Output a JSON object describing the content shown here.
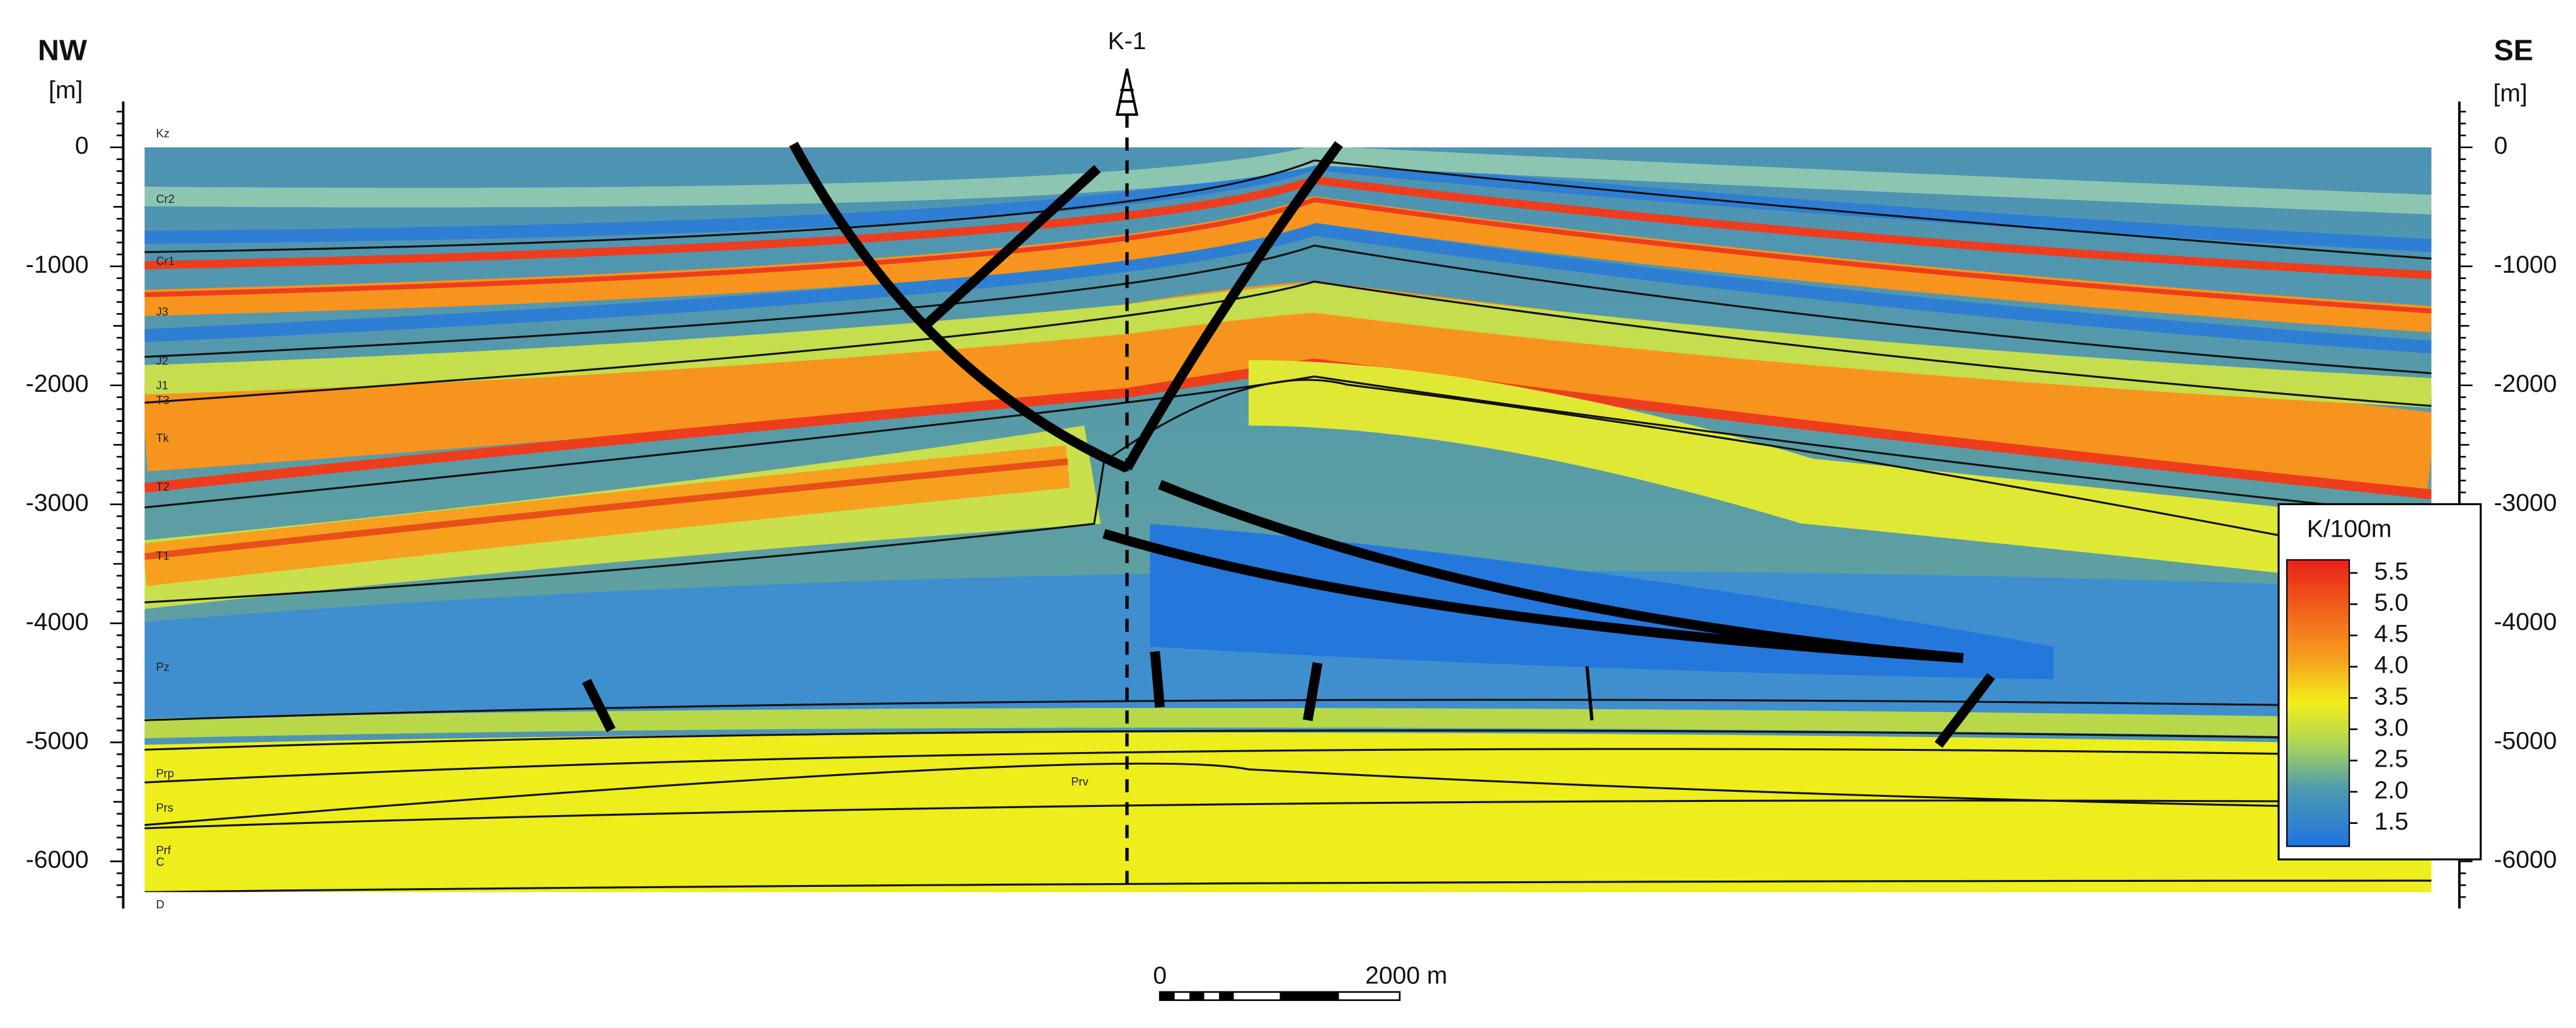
{
  "header": {
    "left": "NW",
    "right": "SE",
    "well": "K-1"
  },
  "left_axis": {
    "unit": "[m]",
    "ticks": [
      "0",
      "-1000",
      "-2000",
      "-3000",
      "-4000",
      "-5000",
      "-6000"
    ]
  },
  "right_axis": {
    "unit": "[m]",
    "ticks": [
      "0",
      "-1000",
      "-2000",
      "-3000",
      "-4000",
      "-5000",
      "-6000"
    ]
  },
  "formations": [
    "Kz",
    "Cr2",
    "Cr1",
    "J3",
    "J2",
    "J1",
    "T3",
    "Tk",
    "T2",
    "T1",
    "Pz",
    "Prp",
    "Prs",
    "Prf",
    "C",
    "D",
    "Prv"
  ],
  "legend": {
    "title": "K/100m",
    "ticks": [
      "5.5",
      "5.0",
      "4.5",
      "4.0",
      "3.5",
      "3.0",
      "2.5",
      "2.0",
      "1.5"
    ]
  },
  "scale_bar": {
    "start": "0",
    "end": "2000 m"
  }
}
